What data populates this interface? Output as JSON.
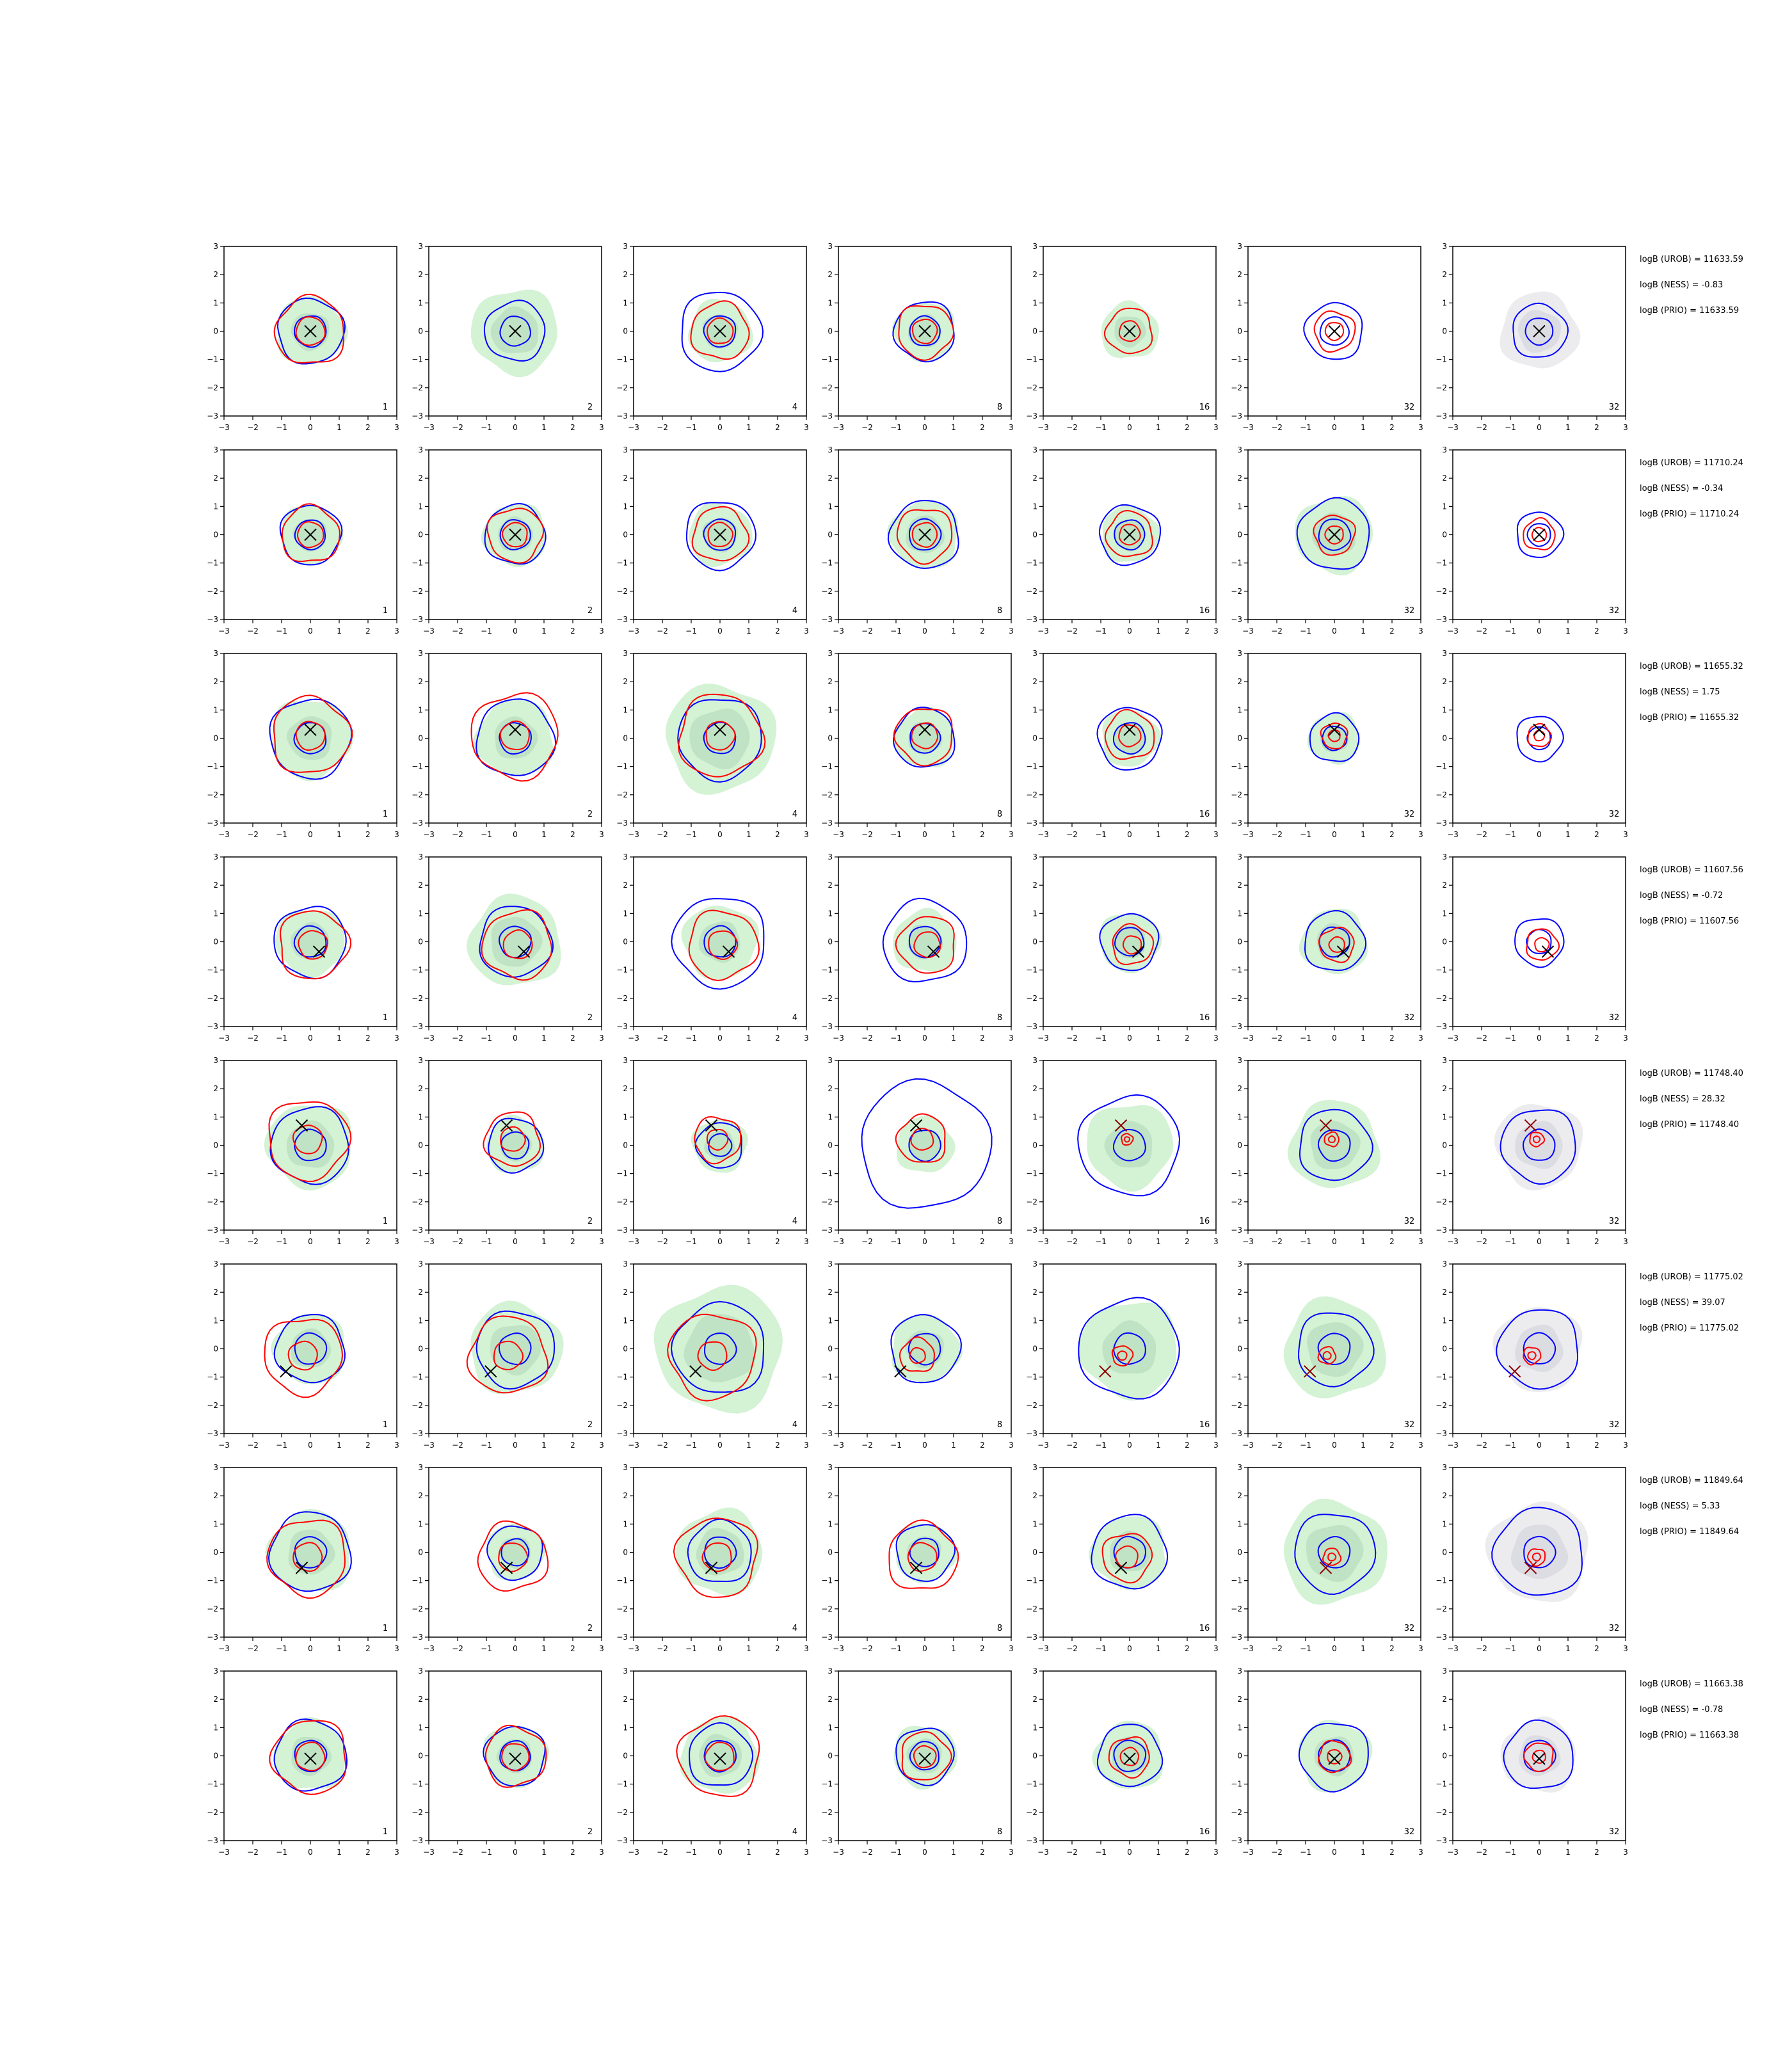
{
  "chart_data": {
    "type": "contour",
    "grid": {
      "rows": 8,
      "cols": 7
    },
    "xlim": [
      -3,
      3
    ],
    "ylim": [
      -3,
      3
    ],
    "ticks": [
      -3,
      -2,
      -1,
      0,
      1,
      2,
      3
    ],
    "grid_lines": false,
    "legend": "none",
    "colors": {
      "fill_light": "#d4f2d4",
      "fill_dark": "#bfe3c4",
      "fill_gray_light": "#ececef",
      "fill_gray_dark": "#dcdce3",
      "blue_contour": "#0000ff",
      "red_contour": "#ff0000",
      "marker": "#000000",
      "axis": "#000000"
    },
    "panel_labels": [
      "1",
      "2",
      "4",
      "8",
      "16",
      "32",
      "32"
    ],
    "last_column_fill": "gray",
    "rows": [
      {
        "marker": [
          0.0,
          0.0
        ],
        "logB_UROB": "logB (UROB) = 11633.59",
        "logB_NESS": "logB (NESS) = -0.83",
        "logB_PRIO": "logB (PRIO) = 11633.59",
        "blue_outer": [
          1.15,
          1.05,
          1.4,
          1.05,
          0.0,
          1.0,
          0.95
        ],
        "red_outer": [
          1.2,
          0.0,
          1.0,
          0.95,
          0.8,
          0.7,
          0.0
        ],
        "fill_radius": [
          1.2,
          1.5,
          1.1,
          1.05,
          1.0,
          0.0,
          1.35
        ]
      },
      {
        "marker": [
          0.0,
          0.0
        ],
        "logB_UROB": "logB (UROB) = 11710.24",
        "logB_NESS": "logB (NESS) = -0.34",
        "logB_PRIO": "logB (PRIO) = 11710.24",
        "blue_outer": [
          1.05,
          1.05,
          1.2,
          1.2,
          1.05,
          1.25,
          0.8
        ],
        "red_outer": [
          1.0,
          0.95,
          0.95,
          0.95,
          0.8,
          0.7,
          0.55
        ],
        "fill_radius": [
          1.05,
          1.1,
          1.1,
          1.2,
          1.0,
          1.35,
          0.0
        ]
      },
      {
        "marker": [
          0.0,
          0.3
        ],
        "logB_UROB": "logB (UROB) = 11655.32",
        "logB_NESS": "logB (NESS) = 1.75",
        "logB_PRIO": "logB (PRIO) = 11655.32",
        "blue_outer": [
          1.4,
          1.35,
          1.45,
          1.05,
          1.1,
          0.85,
          0.8
        ],
        "red_outer": [
          1.35,
          1.5,
          1.45,
          1.0,
          0.85,
          0.45,
          0.4
        ],
        "fill_radius": [
          1.4,
          1.35,
          1.9,
          1.05,
          1.0,
          0.9,
          0.0
        ]
      },
      {
        "marker": [
          0.3,
          -0.35
        ],
        "logB_UROB": "logB (UROB) = 11607.56",
        "logB_NESS": "logB (NESS) = -0.72",
        "logB_PRIO": "logB (PRIO) = 11607.56",
        "blue_outer": [
          1.25,
          1.25,
          1.6,
          1.45,
          1.0,
          1.05,
          0.85
        ],
        "red_outer": [
          1.2,
          1.2,
          1.2,
          1.0,
          0.7,
          0.6,
          0.55
        ],
        "fill_radius": [
          1.2,
          1.6,
          1.3,
          1.1,
          1.05,
          1.15,
          0.0
        ]
      },
      {
        "marker": [
          -0.3,
          0.7
        ],
        "logB_UROB": "logB (UROB) = 11748.40",
        "logB_NESS": "logB (NESS) = 28.32",
        "logB_PRIO": "logB (PRIO) = 11748.40",
        "blue_outer": [
          1.35,
          0.95,
          0.8,
          2.25,
          1.75,
          1.25,
          1.3
        ],
        "red_outer": [
          1.4,
          0.95,
          0.8,
          0.85,
          0.2,
          0.25,
          0.25
        ],
        "fill_radius": [
          1.5,
          1.0,
          0.95,
          1.0,
          1.5,
          1.55,
          1.5
        ]
      },
      {
        "marker": [
          -0.85,
          -0.8
        ],
        "logB_UROB": "logB (UROB) = 11775.02",
        "logB_NESS": "logB (NESS) = 39.07",
        "logB_PRIO": "logB (PRIO) = 11775.02",
        "blue_outer": [
          1.2,
          1.35,
          1.6,
          1.2,
          1.75,
          1.3,
          1.4
        ],
        "red_outer": [
          1.35,
          1.35,
          1.5,
          0.6,
          0.35,
          0.3,
          0.3
        ],
        "fill_radius": [
          1.25,
          1.6,
          2.2,
          1.2,
          1.7,
          1.75,
          1.5
        ]
      },
      {
        "marker": [
          -0.3,
          -0.55
        ],
        "logB_UROB": "logB (UROB) = 11849.64",
        "logB_NESS": "logB (NESS) = 5.33",
        "logB_PRIO": "logB (PRIO) = 11849.64",
        "blue_outer": [
          1.4,
          0.95,
          1.1,
          1.0,
          1.3,
          1.4,
          1.55
        ],
        "red_outer": [
          1.35,
          1.2,
          1.4,
          1.2,
          0.85,
          0.3,
          0.3
        ],
        "fill_radius": [
          1.45,
          1.0,
          1.5,
          1.05,
          1.3,
          1.8,
          1.75
        ]
      },
      {
        "marker": [
          0.0,
          -0.1
        ],
        "logB_UROB": "logB (UROB) = 11663.38",
        "logB_NESS": "logB (NESS) = -0.78",
        "logB_PRIO": "logB (PRIO) = 11663.38",
        "blue_outer": [
          1.25,
          1.05,
          1.1,
          1.0,
          1.1,
          1.2,
          1.2
        ],
        "red_outer": [
          1.3,
          1.05,
          1.4,
          0.85,
          0.7,
          0.55,
          0.5
        ],
        "fill_radius": [
          1.25,
          1.1,
          1.35,
          1.1,
          1.2,
          1.25,
          1.3
        ]
      }
    ]
  }
}
